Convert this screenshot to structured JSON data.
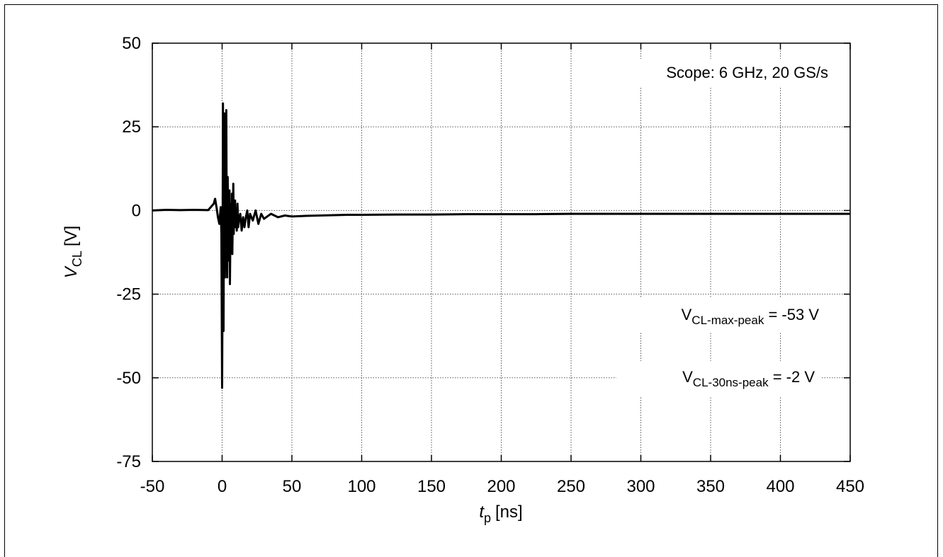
{
  "chart_data": {
    "type": "line",
    "xlabel_main": "t",
    "xlabel_sub": "p",
    "xlabel_unit": "[ns]",
    "ylabel_main": "V",
    "ylabel_sub": "CL",
    "ylabel_unit": "[V]",
    "xlim": [
      -50,
      450
    ],
    "ylim": [
      -75,
      50
    ],
    "xticks": [
      -50,
      0,
      50,
      100,
      150,
      200,
      250,
      300,
      350,
      400,
      450
    ],
    "yticks": [
      -75,
      -50,
      -25,
      0,
      25,
      50
    ],
    "xtick_labels": [
      "-50",
      "0",
      "50",
      "100",
      "150",
      "200",
      "250",
      "300",
      "350",
      "400",
      "450"
    ],
    "ytick_labels": [
      "-75",
      "-50",
      "-25",
      "0",
      "25",
      "50"
    ],
    "grid": true,
    "line_color": "#000000",
    "annotations": {
      "scope": "Scope: 6 GHz, 20 GS/s",
      "max_peak_main": "V",
      "max_peak_sub": "CL-max-peak",
      "max_peak_value": " = -53 V",
      "peak30_main": "V",
      "peak30_sub": "CL-30ns-peak",
      "peak30_value": " = -2 V"
    },
    "series": [
      {
        "x": [
          -50,
          -40,
          -30,
          -20,
          -10,
          -6,
          -5,
          -4,
          -3,
          -2,
          -1,
          -0.5,
          0,
          0.3,
          0.6,
          1,
          1.3,
          1.6,
          2,
          2.3,
          2.6,
          3,
          3.3,
          3.6,
          4,
          4.3,
          4.6,
          5,
          5.3,
          5.6,
          6,
          6.3,
          6.6,
          7,
          7.3,
          7.6,
          8,
          8.3,
          8.6,
          9,
          9.3,
          9.6,
          10,
          10.5,
          11,
          11.5,
          12,
          13,
          14,
          15,
          16,
          17,
          18,
          19,
          20,
          22,
          24,
          26,
          28,
          30,
          35,
          40,
          45,
          50,
          60,
          70,
          80,
          90,
          100,
          125,
          150,
          175,
          200,
          225,
          250,
          275,
          300,
          325,
          350,
          375,
          400,
          425,
          450
        ],
        "y": [
          0,
          0.2,
          0.1,
          0.2,
          0.1,
          2,
          3.5,
          1,
          -2,
          -4,
          1,
          -7,
          -53,
          -20,
          32,
          -36,
          5,
          29,
          -20,
          2,
          -10,
          30,
          -5,
          -20,
          10,
          -8,
          3,
          -15,
          6,
          -22,
          -5,
          2,
          -12,
          5,
          -13,
          -3,
          8,
          -7,
          -1,
          -5,
          3,
          -4,
          -2,
          -6,
          2,
          -5,
          -3,
          -1,
          -6,
          -2,
          -5,
          -2,
          0,
          -5,
          -1,
          -3,
          0,
          -4,
          -1,
          -2.5,
          -1,
          -2,
          -1.5,
          -1.8,
          -1.6,
          -1.5,
          -1.4,
          -1.3,
          -1.3,
          -1.2,
          -1.2,
          -1.1,
          -1.1,
          -1.1,
          -1.0,
          -1.0,
          -1.0,
          -1.0,
          -1.0,
          -1.0,
          -1.0,
          -1.0,
          -1.0
        ]
      }
    ]
  }
}
